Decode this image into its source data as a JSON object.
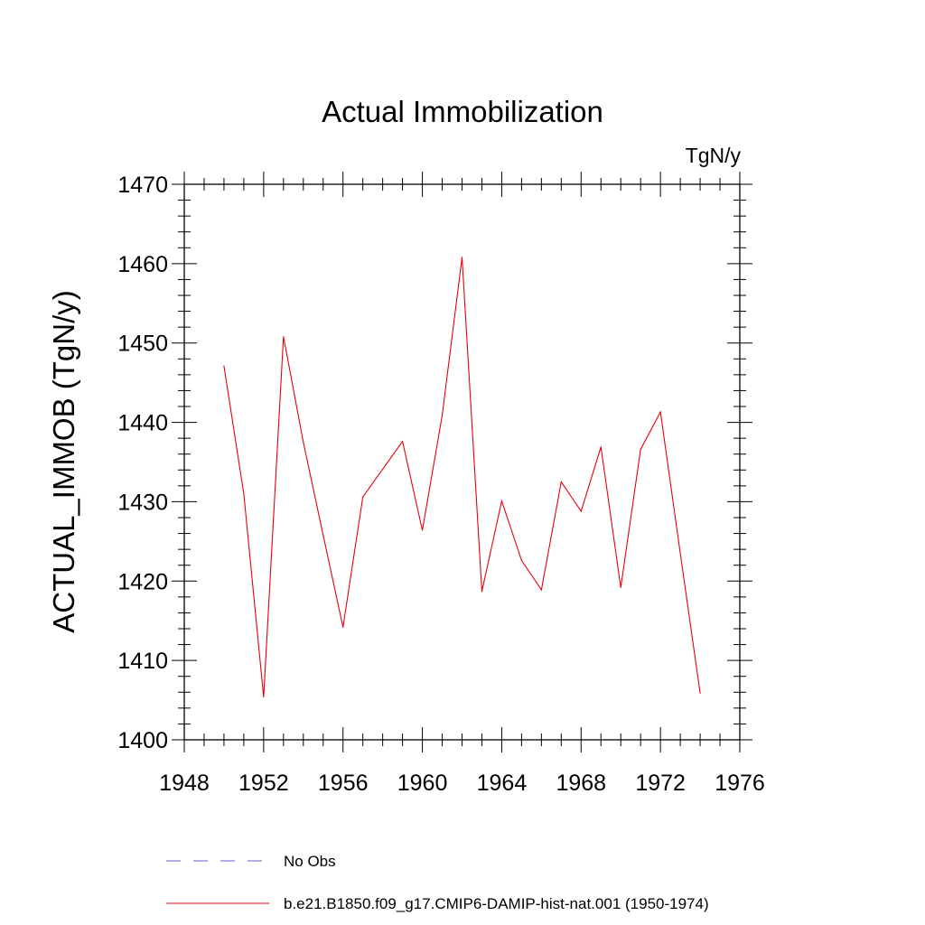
{
  "chart_data": {
    "type": "line",
    "title": "Actual Immobilization",
    "units": "TgN/y",
    "ylabel": "ACTUAL_IMMOB  (TgN/y)",
    "xlabel": "",
    "xlim": [
      1948,
      1976
    ],
    "ylim": [
      1400,
      1470
    ],
    "x_ticks": [
      1948,
      1952,
      1956,
      1960,
      1964,
      1968,
      1972,
      1976
    ],
    "x_tick_labels": [
      "1948",
      "1952",
      "1956",
      "1960",
      "1964",
      "1968",
      "1972",
      "1976"
    ],
    "y_ticks": [
      1400,
      1410,
      1420,
      1430,
      1440,
      1450,
      1460,
      1470
    ],
    "y_tick_labels": [
      "1400",
      "1410",
      "1420",
      "1430",
      "1440",
      "1450",
      "1460",
      "1470"
    ],
    "grid": false,
    "legend_placement": "bottom",
    "series": [
      {
        "name": "No Obs",
        "color": "#6a5acd",
        "dash": "dashed",
        "x": [],
        "y": []
      },
      {
        "name": "b.e21.B1850.f09_g17.CMIP6-DAMIP-hist-nat.001 (1950-1974)",
        "color": "#e8000b",
        "dash": "solid",
        "x": [
          1950,
          1951,
          1952,
          1953,
          1954,
          1955,
          1956,
          1957,
          1958,
          1959,
          1960,
          1961,
          1962,
          1963,
          1964,
          1965,
          1966,
          1967,
          1968,
          1969,
          1970,
          1971,
          1972,
          1973,
          1974
        ],
        "y": [
          1447.1,
          1431.0,
          1405.4,
          1450.8,
          1437.5,
          1425.8,
          1414.2,
          1430.6,
          1434.1,
          1437.6,
          1426.4,
          1440.9,
          1460.8,
          1418.7,
          1430.1,
          1422.6,
          1418.9,
          1432.5,
          1428.8,
          1436.9,
          1419.2,
          1436.6,
          1441.3,
          1423.5,
          1405.9
        ]
      }
    ]
  }
}
